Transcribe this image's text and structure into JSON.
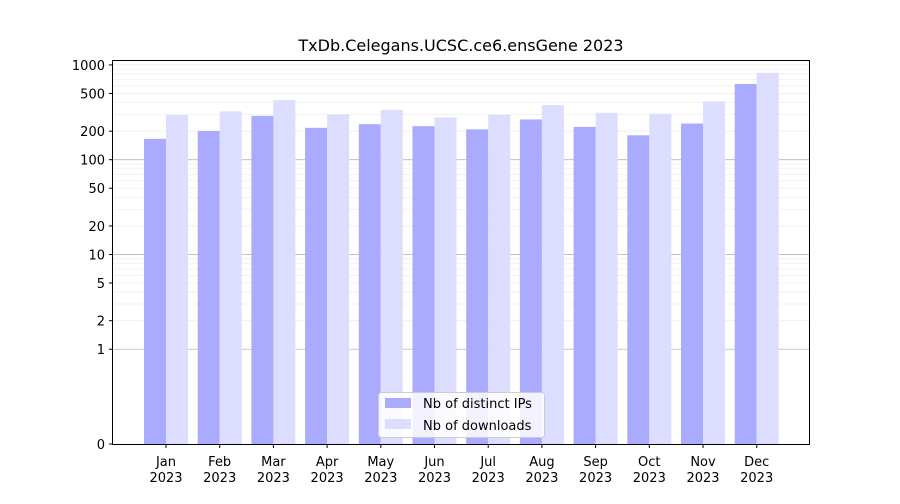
{
  "chart_data": {
    "type": "bar",
    "title": "TxDb.Celegans.UCSC.ce6.ensGene 2023",
    "xlabel": "",
    "ylabel": "",
    "yscale": "symlog",
    "ylim": [
      0,
      1100
    ],
    "yticks": [
      0,
      1,
      2,
      5,
      10,
      20,
      50,
      100,
      200,
      500,
      1000
    ],
    "grid": "horizontal",
    "legend_position": "bottom-center",
    "categories": [
      [
        "Jan",
        "2023"
      ],
      [
        "Feb",
        "2023"
      ],
      [
        "Mar",
        "2023"
      ],
      [
        "Apr",
        "2023"
      ],
      [
        "May",
        "2023"
      ],
      [
        "Jun",
        "2023"
      ],
      [
        "Jul",
        "2023"
      ],
      [
        "Aug",
        "2023"
      ],
      [
        "Sep",
        "2023"
      ],
      [
        "Oct",
        "2023"
      ],
      [
        "Nov",
        "2023"
      ],
      [
        "Dec",
        "2023"
      ]
    ],
    "series": [
      {
        "name": "Nb of distinct IPs",
        "color": "#aaaaff",
        "values": [
          166,
          201,
          290,
          217,
          237,
          226,
          209,
          266,
          222,
          181,
          241,
          630
        ]
      },
      {
        "name": "Nb of downloads",
        "color": "#ddddff",
        "values": [
          296,
          323,
          425,
          300,
          336,
          279,
          297,
          376,
          312,
          305,
          413,
          825
        ]
      }
    ]
  }
}
